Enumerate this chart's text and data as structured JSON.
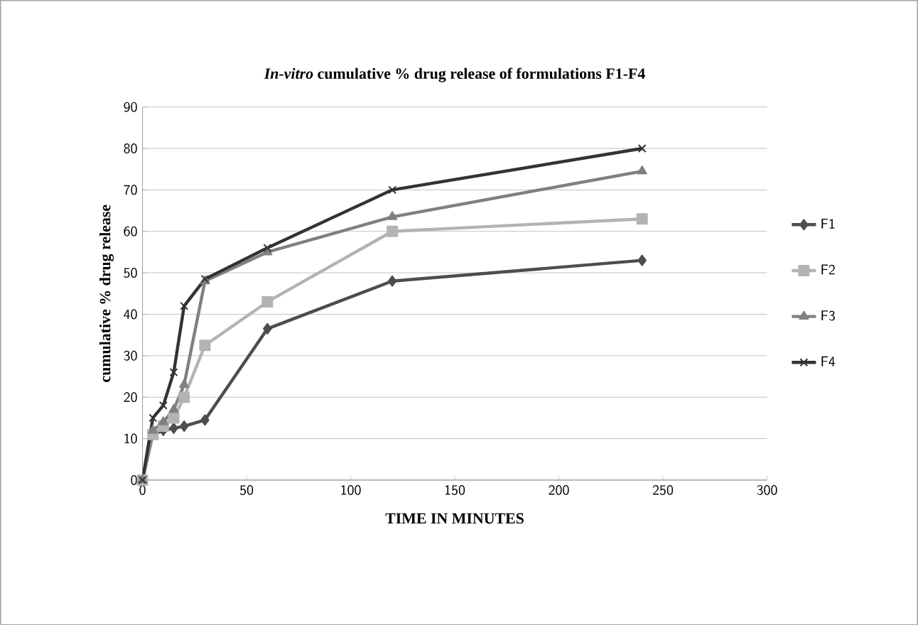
{
  "chart_data": {
    "type": "line",
    "title": "*In-vitro* cumulative % drug release of formulations F1-F4",
    "xlabel": "TIME IN MINUTES",
    "ylabel": "cumulative % drug release",
    "x": [
      0,
      5,
      10,
      15,
      20,
      30,
      60,
      120,
      240
    ],
    "series": [
      {
        "name": "F1",
        "color": "#4d4d4d",
        "marker": "diamond",
        "values": [
          0,
          11,
          12,
          12.5,
          13,
          14.5,
          36.5,
          48,
          53
        ]
      },
      {
        "name": "F2",
        "color": "#b3b3b3",
        "marker": "square",
        "values": [
          0,
          11,
          13,
          15,
          20,
          32.5,
          43,
          60,
          63
        ]
      },
      {
        "name": "F3",
        "color": "#808080",
        "marker": "triangle",
        "values": [
          0,
          12,
          14,
          17,
          23,
          48,
          55,
          63.5,
          74.5
        ]
      },
      {
        "name": "F4",
        "color": "#333333",
        "marker": "cross",
        "values": [
          0,
          15,
          18,
          26,
          42,
          48.5,
          56,
          70,
          80
        ]
      }
    ],
    "xlim": [
      0,
      300
    ],
    "xticks": [
      0,
      50,
      100,
      150,
      200,
      250,
      300
    ],
    "ylim": [
      0,
      90
    ],
    "yticks": [
      0,
      10,
      20,
      30,
      40,
      50,
      60,
      70,
      80,
      90
    ],
    "grid": "y",
    "legend": "right",
    "line_style": "solid"
  }
}
